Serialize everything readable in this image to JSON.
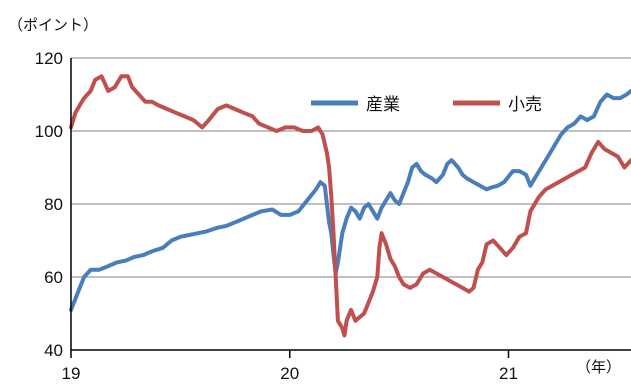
{
  "chart_data": {
    "type": "line",
    "ylabel": "（ポイント）",
    "xlabel": "（年）",
    "ylim": [
      40,
      120
    ],
    "yticks": [
      40,
      60,
      80,
      100,
      120
    ],
    "xlim": [
      2019.0,
      2021.56
    ],
    "xticks": [
      {
        "value": 2019,
        "label": "19"
      },
      {
        "value": 2020,
        "label": "20"
      },
      {
        "value": 2021,
        "label": "21"
      }
    ],
    "grid": "horizontal",
    "legend": "top-right",
    "series": [
      {
        "name": "産業",
        "color": "#4a7ebb",
        "points": [
          [
            2019.0,
            51
          ],
          [
            2019.02,
            54
          ],
          [
            2019.04,
            57
          ],
          [
            2019.06,
            60
          ],
          [
            2019.09,
            62
          ],
          [
            2019.13,
            62
          ],
          [
            2019.17,
            63
          ],
          [
            2019.21,
            64
          ],
          [
            2019.25,
            64.5
          ],
          [
            2019.29,
            65.5
          ],
          [
            2019.33,
            66
          ],
          [
            2019.37,
            67
          ],
          [
            2019.42,
            68
          ],
          [
            2019.46,
            70
          ],
          [
            2019.5,
            71
          ],
          [
            2019.54,
            71.5
          ],
          [
            2019.58,
            72
          ],
          [
            2019.62,
            72.5
          ],
          [
            2019.67,
            73.5
          ],
          [
            2019.71,
            74
          ],
          [
            2019.75,
            75
          ],
          [
            2019.79,
            76
          ],
          [
            2019.83,
            77
          ],
          [
            2019.87,
            78
          ],
          [
            2019.92,
            78.5
          ],
          [
            2019.96,
            77
          ],
          [
            2020.0,
            77
          ],
          [
            2020.04,
            78
          ],
          [
            2020.08,
            81
          ],
          [
            2020.12,
            84
          ],
          [
            2020.14,
            86
          ],
          [
            2020.16,
            85
          ],
          [
            2020.17,
            80
          ],
          [
            2020.18,
            75
          ],
          [
            2020.19,
            72
          ],
          [
            2020.2,
            66
          ],
          [
            2020.21,
            61
          ],
          [
            2020.22,
            64
          ],
          [
            2020.23,
            68
          ],
          [
            2020.24,
            72
          ],
          [
            2020.26,
            76
          ],
          [
            2020.28,
            79
          ],
          [
            2020.3,
            78
          ],
          [
            2020.32,
            76
          ],
          [
            2020.34,
            79
          ],
          [
            2020.36,
            80
          ],
          [
            2020.38,
            78
          ],
          [
            2020.4,
            76
          ],
          [
            2020.42,
            79
          ],
          [
            2020.44,
            81
          ],
          [
            2020.46,
            83
          ],
          [
            2020.48,
            81
          ],
          [
            2020.5,
            80
          ],
          [
            2020.52,
            83
          ],
          [
            2020.54,
            86
          ],
          [
            2020.56,
            90
          ],
          [
            2020.58,
            91
          ],
          [
            2020.6,
            89
          ],
          [
            2020.62,
            88
          ],
          [
            2020.65,
            87
          ],
          [
            2020.67,
            86
          ],
          [
            2020.7,
            88
          ],
          [
            2020.72,
            91
          ],
          [
            2020.74,
            92
          ],
          [
            2020.77,
            90
          ],
          [
            2020.79,
            88
          ],
          [
            2020.81,
            87
          ],
          [
            2020.84,
            86
          ],
          [
            2020.87,
            85
          ],
          [
            2020.9,
            84
          ],
          [
            2020.92,
            84.5
          ],
          [
            2020.95,
            85
          ],
          [
            2020.98,
            86
          ],
          [
            2021.02,
            89
          ],
          [
            2021.05,
            89
          ],
          [
            2021.08,
            88
          ],
          [
            2021.1,
            85
          ],
          [
            2021.12,
            87
          ],
          [
            2021.15,
            90
          ],
          [
            2021.18,
            93
          ],
          [
            2021.21,
            96
          ],
          [
            2021.24,
            99
          ],
          [
            2021.27,
            101
          ],
          [
            2021.3,
            102
          ],
          [
            2021.33,
            104
          ],
          [
            2021.36,
            103
          ],
          [
            2021.39,
            104
          ],
          [
            2021.42,
            108
          ],
          [
            2021.45,
            110
          ],
          [
            2021.48,
            109
          ],
          [
            2021.51,
            109
          ],
          [
            2021.54,
            110
          ],
          [
            2021.56,
            111
          ]
        ]
      },
      {
        "name": "小売",
        "color": "#c0504d",
        "points": [
          [
            2019.0,
            101
          ],
          [
            2019.02,
            105
          ],
          [
            2019.04,
            107
          ],
          [
            2019.06,
            109
          ],
          [
            2019.09,
            111
          ],
          [
            2019.11,
            114
          ],
          [
            2019.14,
            115
          ],
          [
            2019.17,
            111
          ],
          [
            2019.2,
            112
          ],
          [
            2019.23,
            115
          ],
          [
            2019.26,
            115
          ],
          [
            2019.28,
            112
          ],
          [
            2019.31,
            110
          ],
          [
            2019.34,
            108
          ],
          [
            2019.37,
            108
          ],
          [
            2019.4,
            107
          ],
          [
            2019.44,
            106
          ],
          [
            2019.48,
            105
          ],
          [
            2019.52,
            104
          ],
          [
            2019.56,
            103
          ],
          [
            2019.6,
            101
          ],
          [
            2019.63,
            103
          ],
          [
            2019.67,
            106
          ],
          [
            2019.71,
            107
          ],
          [
            2019.75,
            106
          ],
          [
            2019.79,
            105
          ],
          [
            2019.83,
            104
          ],
          [
            2019.86,
            102
          ],
          [
            2019.9,
            101
          ],
          [
            2019.94,
            100
          ],
          [
            2019.98,
            101
          ],
          [
            2020.02,
            101
          ],
          [
            2020.06,
            100
          ],
          [
            2020.1,
            100
          ],
          [
            2020.13,
            101
          ],
          [
            2020.15,
            99
          ],
          [
            2020.17,
            94
          ],
          [
            2020.18,
            90
          ],
          [
            2020.19,
            82
          ],
          [
            2020.2,
            72
          ],
          [
            2020.21,
            60
          ],
          [
            2020.22,
            48
          ],
          [
            2020.23,
            47
          ],
          [
            2020.24,
            46
          ],
          [
            2020.25,
            44
          ],
          [
            2020.26,
            48
          ],
          [
            2020.28,
            51
          ],
          [
            2020.3,
            48
          ],
          [
            2020.32,
            49
          ],
          [
            2020.34,
            50
          ],
          [
            2020.36,
            53
          ],
          [
            2020.38,
            56
          ],
          [
            2020.4,
            60
          ],
          [
            2020.41,
            68
          ],
          [
            2020.42,
            72
          ],
          [
            2020.44,
            69
          ],
          [
            2020.46,
            65
          ],
          [
            2020.48,
            63
          ],
          [
            2020.5,
            60
          ],
          [
            2020.52,
            58
          ],
          [
            2020.55,
            57
          ],
          [
            2020.58,
            58
          ],
          [
            2020.61,
            61
          ],
          [
            2020.64,
            62
          ],
          [
            2020.67,
            61
          ],
          [
            2020.7,
            60
          ],
          [
            2020.73,
            59
          ],
          [
            2020.76,
            58
          ],
          [
            2020.79,
            57
          ],
          [
            2020.82,
            56
          ],
          [
            2020.84,
            57
          ],
          [
            2020.86,
            62
          ],
          [
            2020.88,
            64
          ],
          [
            2020.9,
            69
          ],
          [
            2020.93,
            70
          ],
          [
            2020.96,
            68
          ],
          [
            2020.99,
            66
          ],
          [
            2021.02,
            68
          ],
          [
            2021.05,
            71
          ],
          [
            2021.08,
            72
          ],
          [
            2021.1,
            78
          ],
          [
            2021.12,
            80
          ],
          [
            2021.14,
            82
          ],
          [
            2021.17,
            84
          ],
          [
            2021.2,
            85
          ],
          [
            2021.23,
            86
          ],
          [
            2021.26,
            87
          ],
          [
            2021.29,
            88
          ],
          [
            2021.32,
            89
          ],
          [
            2021.35,
            90
          ],
          [
            2021.38,
            94
          ],
          [
            2021.41,
            97
          ],
          [
            2021.44,
            95
          ],
          [
            2021.47,
            94
          ],
          [
            2021.5,
            93
          ],
          [
            2021.53,
            90
          ],
          [
            2021.56,
            92
          ]
        ]
      }
    ]
  }
}
